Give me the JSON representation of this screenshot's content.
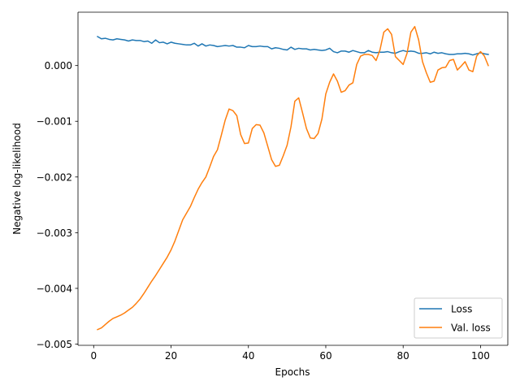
{
  "chart_data": {
    "type": "line",
    "xlabel": "Epochs",
    "ylabel": "Negative log-likelihood",
    "xlim": [
      -4.05,
      107.05
    ],
    "ylim": [
      -0.005022,
      0.000958
    ],
    "xticks": [
      0,
      20,
      40,
      60,
      80,
      100
    ],
    "yticks": [
      -0.005,
      -0.004,
      -0.003,
      -0.002,
      -0.001,
      0.0
    ],
    "ytick_labels": [
      "−0.005",
      "−0.004",
      "−0.003",
      "−0.002",
      "−0.001",
      "0.000"
    ],
    "grid": false,
    "legend": "lower-right",
    "x": [
      1,
      2,
      3,
      4,
      5,
      6,
      7,
      8,
      9,
      10,
      11,
      12,
      13,
      14,
      15,
      16,
      17,
      18,
      19,
      20,
      21,
      22,
      23,
      24,
      25,
      26,
      27,
      28,
      29,
      30,
      31,
      32,
      33,
      34,
      35,
      36,
      37,
      38,
      39,
      40,
      41,
      42,
      43,
      44,
      45,
      46,
      47,
      48,
      49,
      50,
      51,
      52,
      53,
      54,
      55,
      56,
      57,
      58,
      59,
      60,
      61,
      62,
      63,
      64,
      65,
      66,
      67,
      68,
      69,
      70,
      71,
      72,
      73,
      74,
      75,
      76,
      77,
      78,
      79,
      80,
      81,
      82,
      83,
      84,
      85,
      86,
      87,
      88,
      89,
      90,
      91,
      92,
      93,
      94,
      95,
      96,
      97,
      98,
      99,
      100,
      101,
      102
    ],
    "series": [
      {
        "name": "Loss",
        "color": "#1f77b4",
        "values": [
          0.00052,
          0.00048,
          0.00049,
          0.00047,
          0.00046,
          0.00048,
          0.00047,
          0.00046,
          0.00044,
          0.00046,
          0.00045,
          0.00045,
          0.00043,
          0.00044,
          0.0004,
          0.00046,
          0.00041,
          0.00042,
          0.00039,
          0.00042,
          0.0004,
          0.00039,
          0.00038,
          0.00037,
          0.00037,
          0.0004,
          0.00035,
          0.00039,
          0.00035,
          0.00037,
          0.00036,
          0.00034,
          0.00035,
          0.00036,
          0.00035,
          0.00036,
          0.00033,
          0.00033,
          0.00032,
          0.00036,
          0.00034,
          0.00034,
          0.00035,
          0.00034,
          0.00034,
          0.0003,
          0.00032,
          0.00031,
          0.00029,
          0.00028,
          0.00033,
          0.00029,
          0.00031,
          0.0003,
          0.0003,
          0.00028,
          0.00029,
          0.00028,
          0.00027,
          0.00028,
          0.00031,
          0.00025,
          0.00023,
          0.00026,
          0.00026,
          0.00024,
          0.00027,
          0.00025,
          0.00023,
          0.00023,
          0.00027,
          0.00024,
          0.00023,
          0.00024,
          0.00024,
          0.00025,
          0.00023,
          0.00022,
          0.00025,
          0.00027,
          0.00025,
          0.00026,
          0.00025,
          0.00022,
          0.00022,
          0.00023,
          0.00021,
          0.00024,
          0.00022,
          0.00023,
          0.00021,
          0.0002,
          0.0002,
          0.00021,
          0.00021,
          0.00022,
          0.00021,
          0.00019,
          0.00021,
          0.00023,
          0.00021,
          0.0002
        ]
      },
      {
        "name": "Val. loss",
        "color": "#ff7f0e",
        "values": [
          -0.00474,
          -0.00471,
          -0.00465,
          -0.00459,
          -0.00454,
          -0.00451,
          -0.00448,
          -0.00444,
          -0.00439,
          -0.00434,
          -0.00427,
          -0.00419,
          -0.00409,
          -0.00398,
          -0.00387,
          -0.00377,
          -0.00366,
          -0.00355,
          -0.00344,
          -0.00331,
          -0.00315,
          -0.00296,
          -0.00277,
          -0.00265,
          -0.00253,
          -0.00237,
          -0.00222,
          -0.0021,
          -0.002,
          -0.00182,
          -0.00163,
          -0.00151,
          -0.00125,
          -0.00098,
          -0.00078,
          -0.00081,
          -0.0009,
          -0.00124,
          -0.0014,
          -0.00139,
          -0.00113,
          -0.00106,
          -0.00107,
          -0.00121,
          -0.00145,
          -0.00169,
          -0.00181,
          -0.00179,
          -0.00162,
          -0.00143,
          -0.0011,
          -0.00064,
          -0.00058,
          -0.00085,
          -0.00113,
          -0.0013,
          -0.00131,
          -0.00122,
          -0.00096,
          -0.00051,
          -0.0003,
          -0.00015,
          -0.00028,
          -0.00048,
          -0.00045,
          -0.00035,
          -0.00031,
          2e-05,
          0.00017,
          0.0002,
          0.0002,
          0.00018,
          9e-05,
          0.00028,
          0.0006,
          0.00066,
          0.00056,
          0.00016,
          9e-05,
          2e-05,
          0.00022,
          0.0006,
          0.0007,
          0.00046,
          7e-05,
          -0.00013,
          -0.0003,
          -0.00028,
          -8e-05,
          -4e-05,
          -3e-05,
          9e-05,
          0.00011,
          -8e-05,
          -1e-05,
          7e-05,
          -8e-05,
          -0.00011,
          0.00017,
          0.00025,
          0.00017,
          0.0
        ]
      }
    ]
  }
}
